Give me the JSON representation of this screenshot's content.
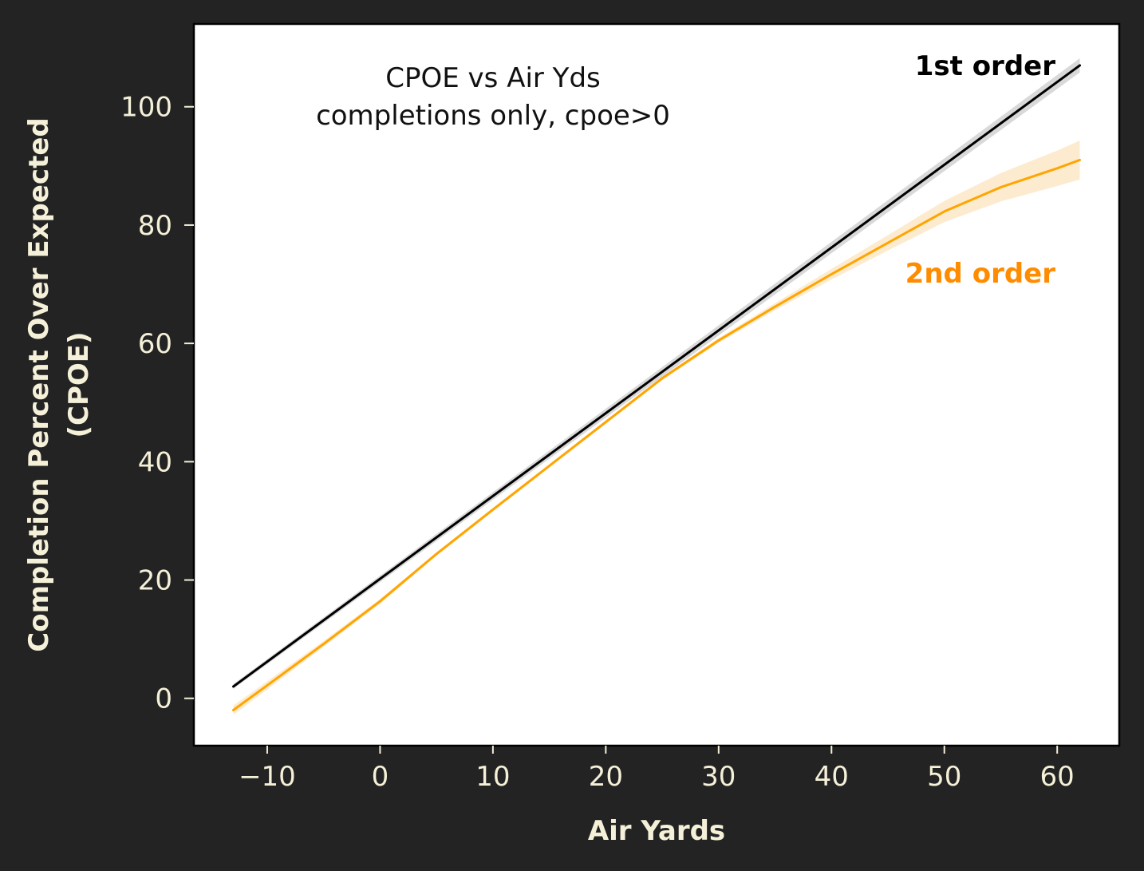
{
  "chart_data": {
    "type": "line",
    "title_lines": [
      "CPOE vs Air Yds",
      "completions only, cpoe>0"
    ],
    "xlabel": "Air Yards",
    "ylabel_lines": [
      "Completion Percent Over Expected",
      "(CPOE)"
    ],
    "xlim": [
      -16.5,
      65.5
    ],
    "ylim": [
      -8,
      114
    ],
    "x_ticks": [
      -10,
      0,
      10,
      20,
      30,
      40,
      50,
      60
    ],
    "x_tick_labels": [
      "−10",
      "0",
      "10",
      "20",
      "30",
      "40",
      "50",
      "60"
    ],
    "y_ticks": [
      0,
      20,
      40,
      60,
      80,
      100
    ],
    "y_tick_labels": [
      "0",
      "20",
      "40",
      "60",
      "80",
      "100"
    ],
    "grid": false,
    "series": [
      {
        "name": "1st order",
        "color": "#000000",
        "band_color": "#d9d9d9",
        "label_color": "#000000",
        "x": [
          -13,
          62
        ],
        "y": [
          2.0,
          107.0
        ],
        "band_half_width": [
          0.4,
          1.2
        ]
      },
      {
        "name": "2nd order",
        "color": "#ffa500",
        "band_color": "#fdebd0",
        "label_color": "#ff8c00",
        "x": [
          -13,
          -10,
          -5,
          0,
          5,
          10,
          15,
          20,
          25,
          30,
          35,
          40,
          45,
          50,
          55,
          60,
          62
        ],
        "y": [
          -2.0,
          2.2,
          9.2,
          16.4,
          24.4,
          31.9,
          39.3,
          46.7,
          54.1,
          60.5,
          66.2,
          71.7,
          77.0,
          82.3,
          86.4,
          89.6,
          91.0
        ],
        "band_half_width": [
          0.8,
          0.7,
          0.5,
          0.4,
          0.3,
          0.3,
          0.3,
          0.3,
          0.3,
          0.4,
          0.6,
          0.9,
          1.3,
          1.8,
          2.4,
          3.0,
          3.3
        ]
      }
    ]
  }
}
